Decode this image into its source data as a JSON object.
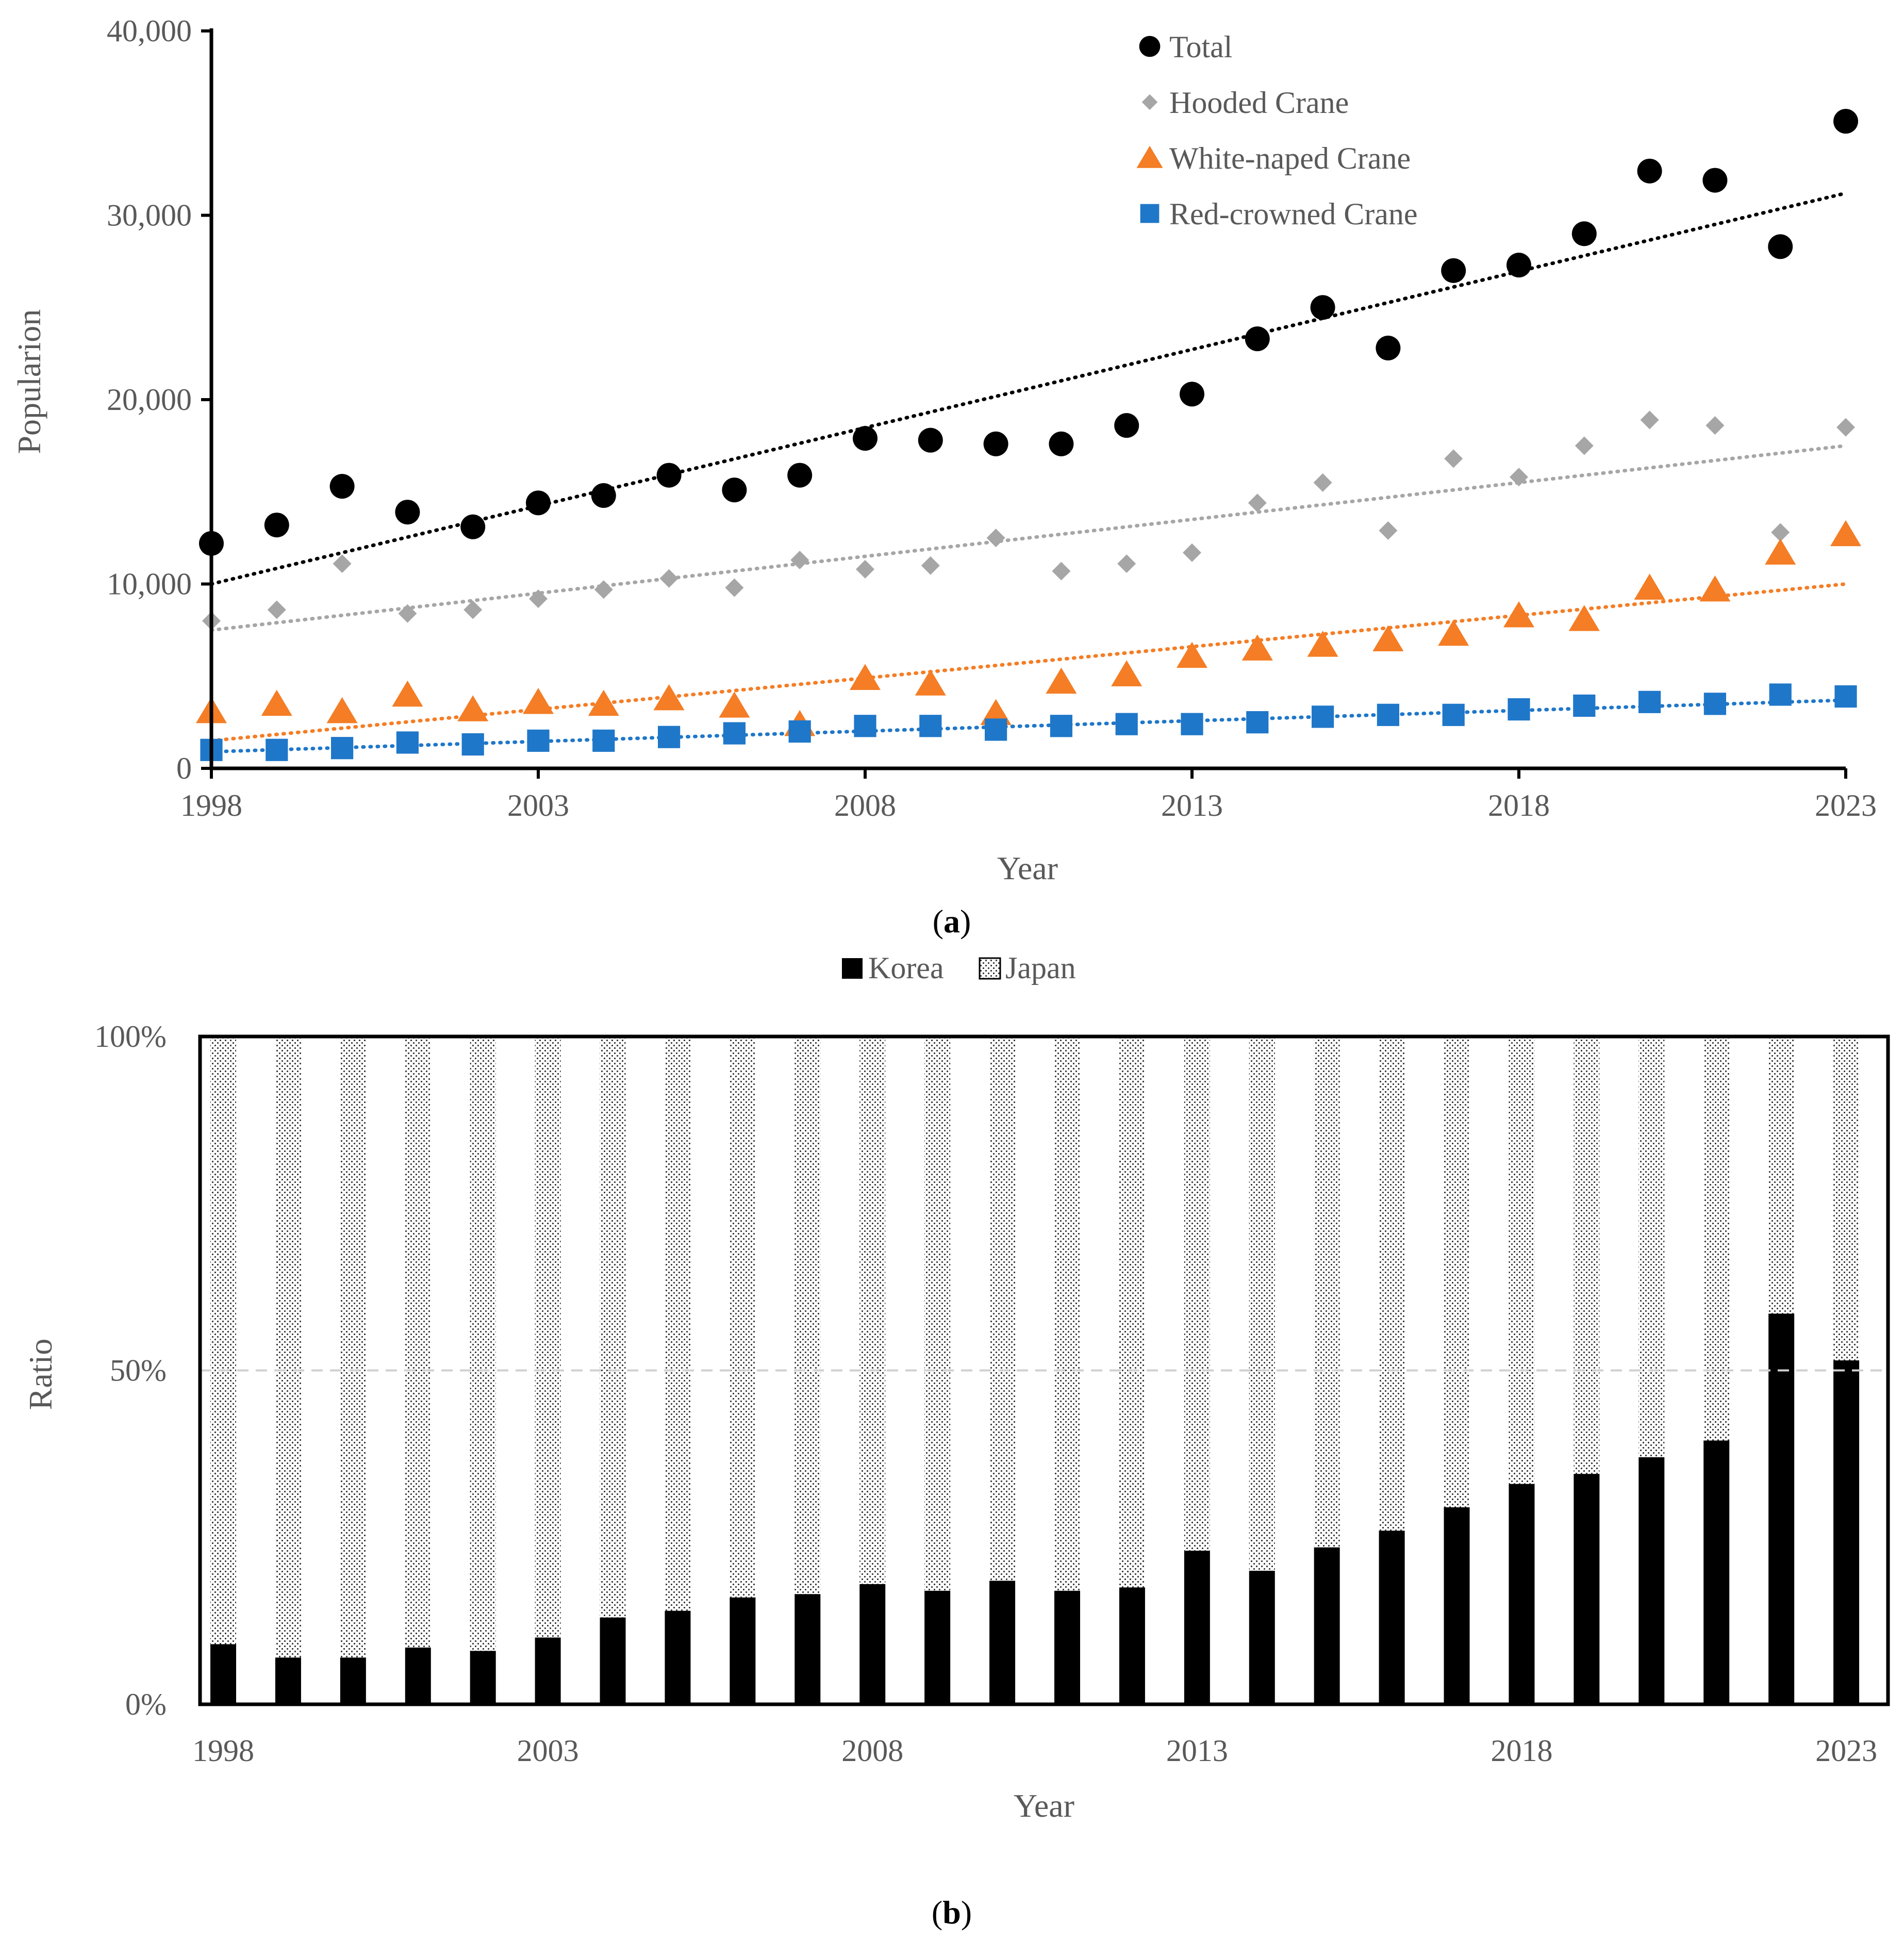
{
  "chart_data": [
    {
      "type": "scatter",
      "panel_label": "a",
      "xlabel": "Year",
      "ylabel": "Popularion",
      "xlim": [
        1998,
        2023
      ],
      "ylim": [
        0,
        40000
      ],
      "x_ticks": [
        1998,
        2003,
        2008,
        2013,
        2018,
        2023
      ],
      "y_ticks": [
        0,
        10000,
        20000,
        30000,
        40000
      ],
      "y_tick_labels": [
        "0",
        "10,000",
        "20,000",
        "30,000",
        "40,000"
      ],
      "legend_position": "top-right",
      "x": [
        1998,
        1999,
        2000,
        2001,
        2002,
        2003,
        2004,
        2005,
        2006,
        2007,
        2008,
        2009,
        2010,
        2011,
        2012,
        2013,
        2014,
        2015,
        2016,
        2017,
        2018,
        2019,
        2020,
        2021,
        2022,
        2023
      ],
      "series": [
        {
          "name": "Total",
          "marker": "circle",
          "color": "#000000",
          "values": [
            12200,
            13200,
            15300,
            13900,
            13100,
            14400,
            14800,
            15900,
            15100,
            15900,
            17900,
            17800,
            17600,
            17600,
            18600,
            20300,
            23300,
            25000,
            22800,
            27000,
            27300,
            29000,
            32400,
            31900,
            28300,
            35100
          ],
          "trend": [
            10000,
            31200
          ]
        },
        {
          "name": "Hooded Crane",
          "marker": "diamond",
          "color": "#a6a6a6",
          "values": [
            8000,
            8600,
            11100,
            8400,
            8600,
            9200,
            9700,
            10300,
            9800,
            11300,
            10800,
            11000,
            12500,
            10700,
            11100,
            11700,
            14400,
            15500,
            12900,
            16800,
            15800,
            17500,
            18900,
            18600,
            12800,
            18500
          ],
          "trend": [
            7500,
            17500
          ]
        },
        {
          "name": "White-naped Crane",
          "marker": "triangle",
          "color": "#f47d25",
          "values": [
            3100,
            3500,
            3100,
            4000,
            3200,
            3600,
            3500,
            3800,
            3400,
            2400,
            4900,
            4600,
            3000,
            4700,
            5100,
            6100,
            6500,
            6700,
            7000,
            7300,
            8300,
            8100,
            9800,
            9700,
            11700,
            12700
          ],
          "trend": [
            1500,
            10000
          ]
        },
        {
          "name": "Red-crowned Crane",
          "marker": "square",
          "color": "#1f77c9",
          "values": [
            1000,
            1000,
            1100,
            1400,
            1300,
            1500,
            1500,
            1700,
            1900,
            2000,
            2300,
            2300,
            2100,
            2300,
            2400,
            2400,
            2500,
            2800,
            2900,
            2900,
            3200,
            3400,
            3600,
            3500,
            4000,
            3900
          ],
          "trend": [
            900,
            3700
          ]
        }
      ]
    },
    {
      "type": "bar",
      "stacked": true,
      "panel_label": "b",
      "xlabel": "Year",
      "ylabel": "Ratio",
      "ylim": [
        0,
        100
      ],
      "x_ticks": [
        1998,
        2003,
        2008,
        2013,
        2018,
        2023
      ],
      "y_ticks": [
        0,
        50,
        100
      ],
      "y_tick_labels": [
        "0%",
        "50%",
        "100%"
      ],
      "reference_line": 50,
      "legend_position": "top-center",
      "categories": [
        1998,
        1999,
        2000,
        2001,
        2002,
        2003,
        2004,
        2005,
        2006,
        2007,
        2008,
        2009,
        2010,
        2011,
        2012,
        2013,
        2014,
        2015,
        2016,
        2017,
        2018,
        2019,
        2020,
        2021,
        2022,
        2023
      ],
      "series": [
        {
          "name": "Korea",
          "fill": "#000000",
          "values": [
            9,
            7,
            7,
            8.5,
            8,
            10,
            13,
            14,
            16,
            16.5,
            18,
            17,
            18.5,
            17,
            17.5,
            23,
            20,
            23.5,
            26,
            29.5,
            33,
            34.5,
            37,
            39.5,
            58.5,
            51.5
          ]
        },
        {
          "name": "Japan",
          "fill": "dotted",
          "values": [
            91,
            93,
            93,
            91.5,
            92,
            90,
            87,
            86,
            84,
            83.5,
            82,
            83,
            81.5,
            83,
            82.5,
            77,
            80,
            76.5,
            74,
            70.5,
            67,
            65.5,
            63,
            60.5,
            41.5,
            48.5
          ]
        }
      ]
    }
  ]
}
